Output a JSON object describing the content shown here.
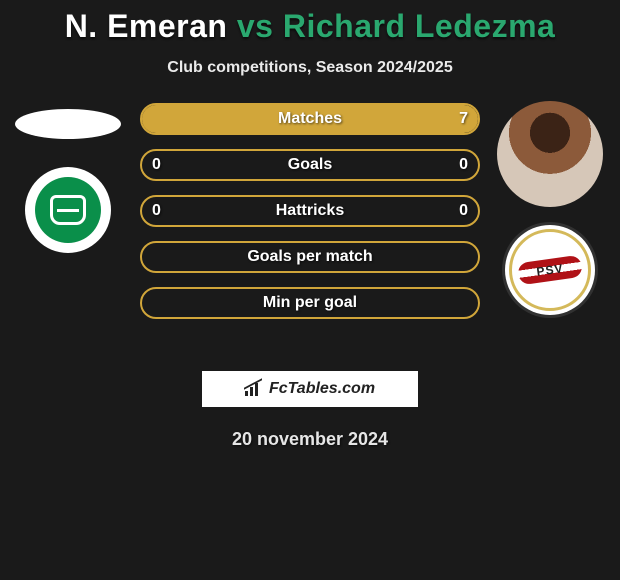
{
  "title": {
    "player1": "N. Emeran",
    "separator": "vs",
    "player2": "Richard Ledezma",
    "p1_color": "#ffffff",
    "accent_color": "#2aa86f"
  },
  "subtitle": "Club competitions, Season 2024/2025",
  "left": {
    "club_name": "FC Groningen",
    "club_primary": "#0a8f4a",
    "club_secondary": "#ffffff"
  },
  "right": {
    "club_name": "PSV",
    "club_label": "PSV",
    "club_primary": "#b01217",
    "club_secondary": "#ffffff",
    "club_accent": "#d4b95a"
  },
  "bars": {
    "border_color_p1": "#6aa84f",
    "fill_color_p1": "#6aa84f88",
    "border_color_p2": "#d1a63a",
    "fill_color_p2": "#d1a63a",
    "fill_color_p2_faint": "#d1a63a22",
    "rows": [
      {
        "label": "Matches",
        "left": "",
        "right": "7",
        "left_pct": 0,
        "right_pct": 100
      },
      {
        "label": "Goals",
        "left": "0",
        "right": "0",
        "left_pct": 0,
        "right_pct": 0
      },
      {
        "label": "Hattricks",
        "left": "0",
        "right": "0",
        "left_pct": 0,
        "right_pct": 0
      },
      {
        "label": "Goals per match",
        "left": "",
        "right": "",
        "left_pct": 0,
        "right_pct": 0
      },
      {
        "label": "Min per goal",
        "left": "",
        "right": "",
        "left_pct": 0,
        "right_pct": 0
      }
    ]
  },
  "brand": "FcTables.com",
  "date": "20 november 2024",
  "background_color": "#1a1a1a"
}
